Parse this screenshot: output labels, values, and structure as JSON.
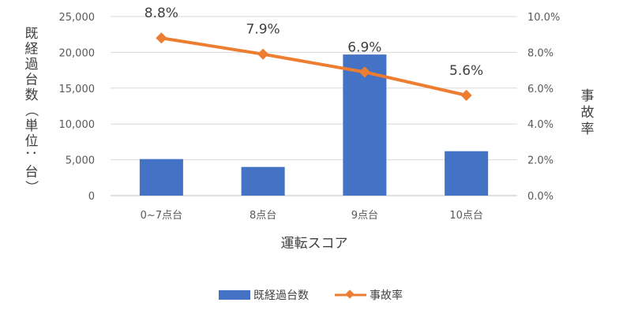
{
  "chart_data": {
    "type": "bar-line-combo",
    "categories": [
      "0~7点台",
      "8点台",
      "9点台",
      "10点台"
    ],
    "series": [
      {
        "name": "既経過台数",
        "type": "bar",
        "axis": "left",
        "values": [
          5100,
          4000,
          19700,
          6200
        ],
        "color": "#4472C4"
      },
      {
        "name": "事故率",
        "type": "line",
        "axis": "right",
        "values": [
          8.8,
          7.9,
          6.9,
          5.6
        ],
        "data_labels": [
          "8.8%",
          "7.9%",
          "6.9%",
          "5.6%"
        ],
        "color": "#ED7D31",
        "marker": "diamond"
      }
    ],
    "xlabel": "運転スコア",
    "ylabel_left": "既経過台数（単位：台）",
    "ylabel_right": "事故率",
    "ylim_left": [
      0,
      25000
    ],
    "ylim_right": [
      0,
      10
    ],
    "yticks_left": [
      "0",
      "5,000",
      "10,000",
      "15,000",
      "20,000",
      "25,000"
    ],
    "yticks_right": [
      "0.0%",
      "2.0%",
      "4.0%",
      "6.0%",
      "8.0%",
      "10.0%"
    ],
    "grid": true,
    "legend_position": "bottom"
  }
}
